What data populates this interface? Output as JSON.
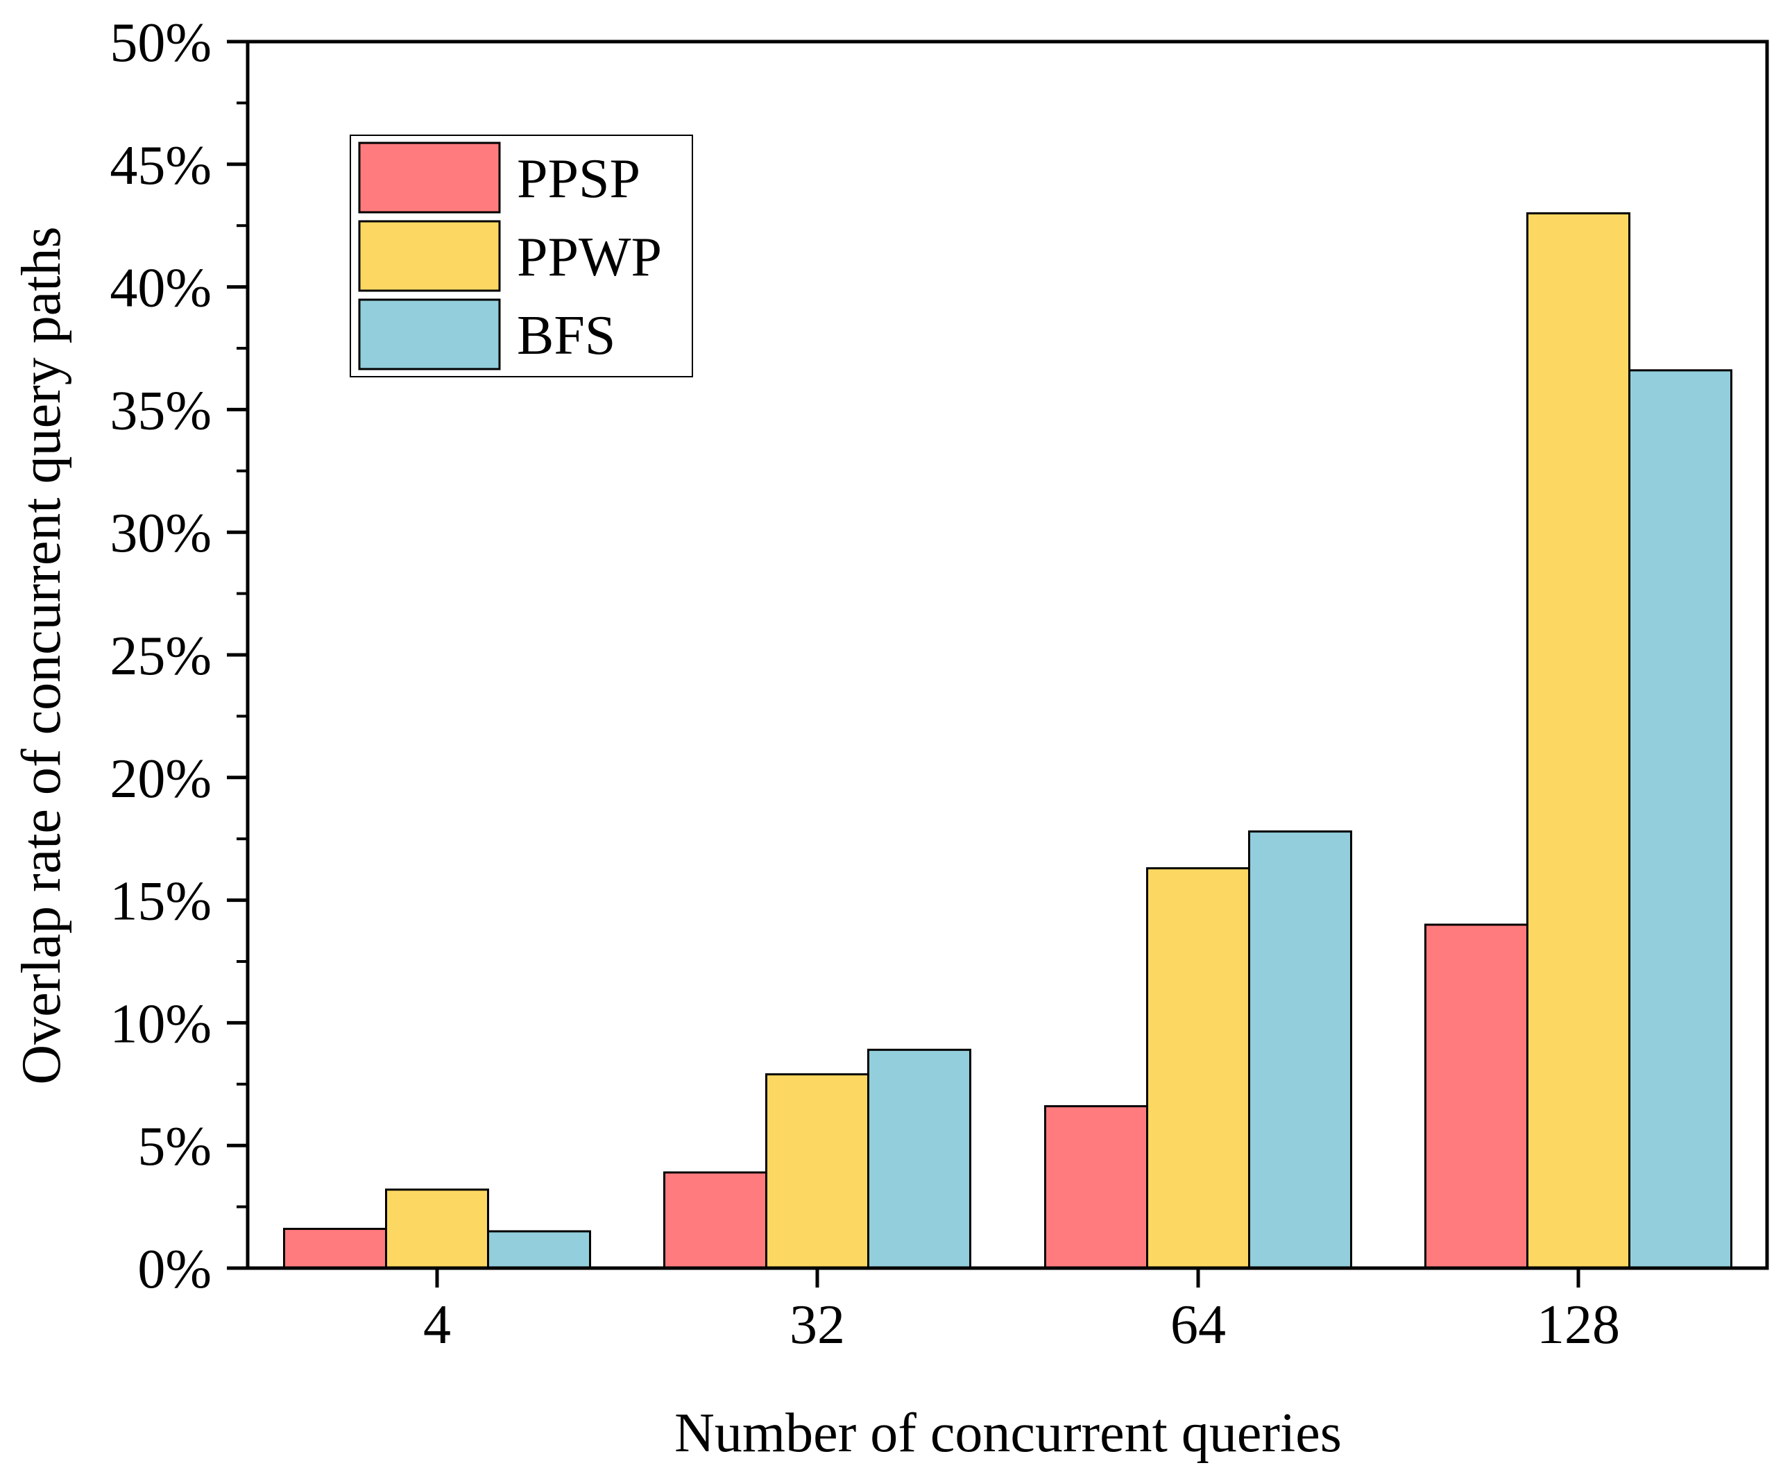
{
  "chart_data": {
    "type": "bar",
    "title": "",
    "xlabel": "Number of concurrent queries",
    "ylabel": "Overlap rate of concurrent query paths",
    "categories": [
      "4",
      "32",
      "64",
      "128"
    ],
    "series": [
      {
        "name": "PPSP",
        "color": "#FF7B7E",
        "values": [
          1.6,
          3.9,
          6.6,
          14.0
        ]
      },
      {
        "name": "PPWP",
        "color": "#FCD863",
        "values": [
          3.2,
          7.9,
          16.3,
          43.0
        ]
      },
      {
        "name": "BFS",
        "color": "#92CEDB",
        "values": [
          1.5,
          8.9,
          17.8,
          36.6
        ]
      }
    ],
    "ylim": [
      0,
      50
    ],
    "yticks": [
      0,
      5,
      10,
      15,
      20,
      25,
      30,
      35,
      40,
      45,
      50
    ],
    "ytick_labels": [
      "0%",
      "5%",
      "10%",
      "15%",
      "20%",
      "25%",
      "30%",
      "35%",
      "40%",
      "45%",
      "50%"
    ],
    "grid": false,
    "legend_position": "top-left"
  }
}
